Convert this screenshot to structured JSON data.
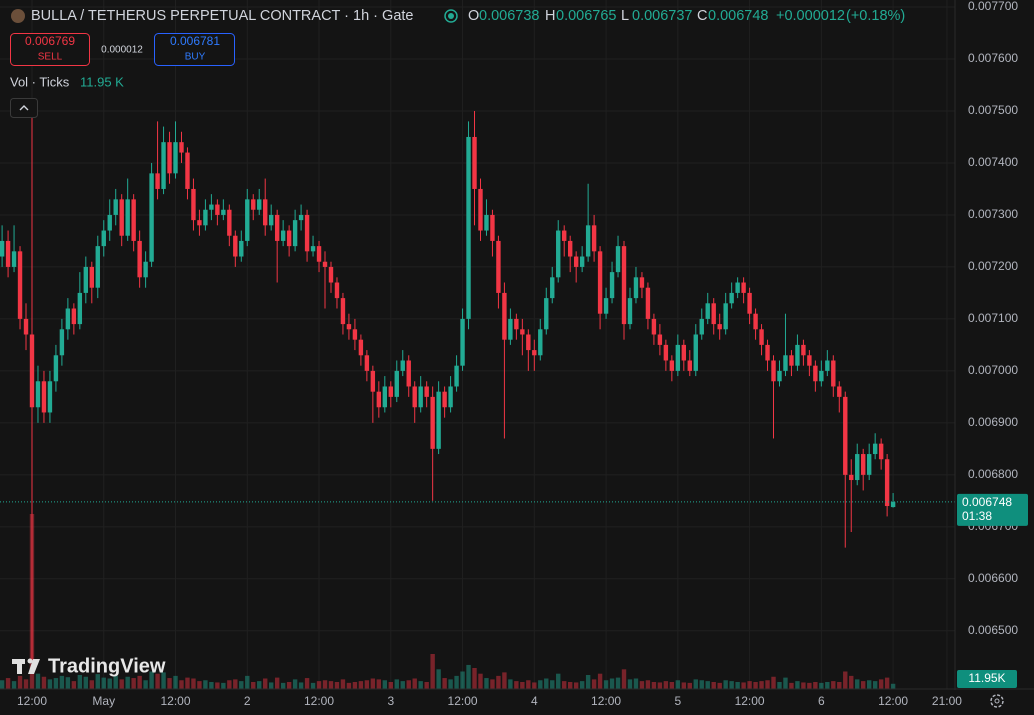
{
  "chart_data": {
    "type": "candlestick",
    "title": "BULLA / TETHERUS PERPETUAL CONTRACT · 1h · Gate",
    "ohlc_keys": [
      "O",
      "H",
      "L",
      "C"
    ],
    "change": {
      "value": 1.2e-05,
      "label": "+0.000012"
    },
    "change_pct": {
      "value": 0.18,
      "label": "(+0.18%)"
    },
    "sell": {
      "price": 0.006769,
      "label": "SELL"
    },
    "spread": 1.2e-05,
    "buy": {
      "price": 0.006781,
      "label": "BUY"
    },
    "volume_title": "Vol · Ticks",
    "volume_label": {
      "value": 11950,
      "label": "11.95 K"
    },
    "volume_axis_label": {
      "value": 11950,
      "label": "11.95K"
    },
    "countdown": "01:38",
    "watermark": "TradingView",
    "up_color": "#22ab94",
    "down_color": "#f23645",
    "grid": true,
    "ylim": [
      0.006388,
      0.0077135
    ],
    "yticks": [
      {
        "value": 0.0077,
        "label": "0.007700"
      },
      {
        "value": 0.0076,
        "label": "0.007600"
      },
      {
        "value": 0.0075,
        "label": "0.007500"
      },
      {
        "value": 0.0074,
        "label": "0.007400"
      },
      {
        "value": 0.0073,
        "label": "0.007300"
      },
      {
        "value": 0.0072,
        "label": "0.007200"
      },
      {
        "value": 0.0071,
        "label": "0.007100"
      },
      {
        "value": 0.007,
        "label": "0.007000"
      },
      {
        "value": 0.0069,
        "label": "0.006900"
      },
      {
        "value": 0.0068,
        "label": "0.006800"
      },
      {
        "value": 0.0067,
        "label": "0.006700"
      },
      {
        "value": 0.0066,
        "label": "0.006600"
      },
      {
        "value": 0.0065,
        "label": "0.006500"
      }
    ],
    "xlim": [
      -0.35,
      159.35
    ],
    "xticks": [
      {
        "value": 5,
        "label": "12:00"
      },
      {
        "value": 17,
        "label": "May"
      },
      {
        "value": 29,
        "label": "12:00"
      },
      {
        "value": 41,
        "label": "2"
      },
      {
        "value": 53,
        "label": "12:00"
      },
      {
        "value": 65,
        "label": "3"
      },
      {
        "value": 77,
        "label": "12:00"
      },
      {
        "value": 89,
        "label": "4"
      },
      {
        "value": 101,
        "label": "12:00"
      },
      {
        "value": 113,
        "label": "5"
      },
      {
        "value": 125,
        "label": "12:00"
      },
      {
        "value": 137,
        "label": "6"
      },
      {
        "value": 149,
        "label": "12:00"
      },
      {
        "value": 158,
        "label": "21:00"
      }
    ],
    "candles": [
      [
        0.00722,
        0.00728,
        0.0072,
        0.00725
      ],
      [
        0.00725,
        0.00727,
        0.00718,
        0.0072
      ],
      [
        0.0072,
        0.00728,
        0.00719,
        0.00723
      ],
      [
        0.00723,
        0.00724,
        0.00708,
        0.0071
      ],
      [
        0.0071,
        0.00713,
        0.00704,
        0.00707
      ],
      [
        0.00707,
        0.00752,
        0.00644,
        0.00693
      ],
      [
        0.00693,
        0.00701,
        0.0069,
        0.00698
      ],
      [
        0.00698,
        0.007,
        0.0069,
        0.00692
      ],
      [
        0.00692,
        0.007,
        0.0069,
        0.00698
      ],
      [
        0.00698,
        0.00705,
        0.00696,
        0.00703
      ],
      [
        0.00703,
        0.0071,
        0.00701,
        0.00708
      ],
      [
        0.00708,
        0.00714,
        0.00706,
        0.00712
      ],
      [
        0.00712,
        0.00713,
        0.00707,
        0.00709
      ],
      [
        0.00709,
        0.00719,
        0.00708,
        0.00715
      ],
      [
        0.00715,
        0.00722,
        0.00713,
        0.0072
      ],
      [
        0.0072,
        0.00721,
        0.00713,
        0.00716
      ],
      [
        0.00716,
        0.00726,
        0.00714,
        0.00724
      ],
      [
        0.00724,
        0.00729,
        0.00722,
        0.00727
      ],
      [
        0.00727,
        0.00733,
        0.00725,
        0.0073
      ],
      [
        0.0073,
        0.00735,
        0.00728,
        0.00733
      ],
      [
        0.00733,
        0.00734,
        0.00724,
        0.00726
      ],
      [
        0.00726,
        0.00737,
        0.00725,
        0.00733
      ],
      [
        0.00733,
        0.00734,
        0.00723,
        0.00725
      ],
      [
        0.00725,
        0.00727,
        0.00716,
        0.00718
      ],
      [
        0.00718,
        0.00723,
        0.00716,
        0.00721
      ],
      [
        0.00721,
        0.0074,
        0.0072,
        0.00738
      ],
      [
        0.00738,
        0.00748,
        0.00733,
        0.00735
      ],
      [
        0.00735,
        0.00747,
        0.00734,
        0.00744
      ],
      [
        0.00744,
        0.00746,
        0.00736,
        0.00738
      ],
      [
        0.00738,
        0.00748,
        0.00737,
        0.00744
      ],
      [
        0.00744,
        0.00746,
        0.0074,
        0.00742
      ],
      [
        0.00742,
        0.00743,
        0.00733,
        0.00735
      ],
      [
        0.00735,
        0.00737,
        0.00727,
        0.00729
      ],
      [
        0.00729,
        0.00731,
        0.00726,
        0.00728
      ],
      [
        0.00728,
        0.00733,
        0.00727,
        0.00731
      ],
      [
        0.00731,
        0.00734,
        0.00729,
        0.00732
      ],
      [
        0.00732,
        0.00733,
        0.00728,
        0.0073
      ],
      [
        0.0073,
        0.00733,
        0.00729,
        0.00731
      ],
      [
        0.00731,
        0.00732,
        0.00724,
        0.00726
      ],
      [
        0.00726,
        0.00727,
        0.0072,
        0.00722
      ],
      [
        0.00722,
        0.00727,
        0.00721,
        0.00725
      ],
      [
        0.00725,
        0.00735,
        0.00724,
        0.00733
      ],
      [
        0.00733,
        0.00734,
        0.00729,
        0.00731
      ],
      [
        0.00731,
        0.00735,
        0.0073,
        0.00733
      ],
      [
        0.00733,
        0.00737,
        0.00726,
        0.00728
      ],
      [
        0.00728,
        0.00732,
        0.00727,
        0.0073
      ],
      [
        0.0073,
        0.00731,
        0.00717,
        0.00725
      ],
      [
        0.00725,
        0.00729,
        0.00724,
        0.00727
      ],
      [
        0.00727,
        0.00728,
        0.00722,
        0.00724
      ],
      [
        0.00724,
        0.00731,
        0.00723,
        0.00729
      ],
      [
        0.00729,
        0.00732,
        0.00727,
        0.0073
      ],
      [
        0.0073,
        0.00731,
        0.00721,
        0.00723
      ],
      [
        0.00723,
        0.00726,
        0.00722,
        0.00724
      ],
      [
        0.00724,
        0.00725,
        0.00719,
        0.00721
      ],
      [
        0.00721,
        0.00723,
        0.00712,
        0.0072
      ],
      [
        0.0072,
        0.00721,
        0.00715,
        0.00717
      ],
      [
        0.00717,
        0.00718,
        0.00712,
        0.00714
      ],
      [
        0.00714,
        0.00715,
        0.00707,
        0.00709
      ],
      [
        0.00709,
        0.00711,
        0.00706,
        0.00708
      ],
      [
        0.00708,
        0.0071,
        0.00704,
        0.00706
      ],
      [
        0.00706,
        0.00707,
        0.00701,
        0.00703
      ],
      [
        0.00703,
        0.00704,
        0.00698,
        0.007
      ],
      [
        0.007,
        0.00701,
        0.0069,
        0.00696
      ],
      [
        0.00696,
        0.00698,
        0.00691,
        0.00693
      ],
      [
        0.00693,
        0.00699,
        0.00692,
        0.00697
      ],
      [
        0.00697,
        0.00698,
        0.00693,
        0.00695
      ],
      [
        0.00695,
        0.00702,
        0.00694,
        0.007
      ],
      [
        0.007,
        0.00704,
        0.00699,
        0.00702
      ],
      [
        0.00702,
        0.00703,
        0.00695,
        0.00697
      ],
      [
        0.00697,
        0.00698,
        0.0069,
        0.00693
      ],
      [
        0.00693,
        0.00699,
        0.00692,
        0.00697
      ],
      [
        0.00697,
        0.00698,
        0.00693,
        0.00695
      ],
      [
        0.00695,
        0.00697,
        0.00675,
        0.00685
      ],
      [
        0.00685,
        0.00698,
        0.00684,
        0.00696
      ],
      [
        0.00696,
        0.00697,
        0.00691,
        0.00693
      ],
      [
        0.00693,
        0.00699,
        0.00692,
        0.00697
      ],
      [
        0.00697,
        0.00703,
        0.00696,
        0.00701
      ],
      [
        0.00701,
        0.00712,
        0.007,
        0.0071
      ],
      [
        0.0071,
        0.00748,
        0.00708,
        0.00745
      ],
      [
        0.00745,
        0.0075,
        0.00728,
        0.00735
      ],
      [
        0.00735,
        0.00737,
        0.00725,
        0.00727
      ],
      [
        0.00727,
        0.00733,
        0.00726,
        0.0073
      ],
      [
        0.0073,
        0.00731,
        0.00722,
        0.00725
      ],
      [
        0.00725,
        0.00726,
        0.00712,
        0.00715
      ],
      [
        0.00715,
        0.00717,
        0.00687,
        0.00706
      ],
      [
        0.00706,
        0.00712,
        0.00705,
        0.0071
      ],
      [
        0.0071,
        0.00711,
        0.00706,
        0.00708
      ],
      [
        0.00708,
        0.0071,
        0.00703,
        0.00707
      ],
      [
        0.00707,
        0.00708,
        0.007,
        0.00704
      ],
      [
        0.00704,
        0.00706,
        0.007,
        0.00703
      ],
      [
        0.00703,
        0.0071,
        0.00702,
        0.00708
      ],
      [
        0.00708,
        0.00716,
        0.00707,
        0.00714
      ],
      [
        0.00714,
        0.0072,
        0.00713,
        0.00718
      ],
      [
        0.00718,
        0.00729,
        0.00717,
        0.00727
      ],
      [
        0.00727,
        0.00728,
        0.00722,
        0.00725
      ],
      [
        0.00725,
        0.00726,
        0.00719,
        0.00722
      ],
      [
        0.00722,
        0.00723,
        0.00717,
        0.0072
      ],
      [
        0.0072,
        0.00724,
        0.00719,
        0.00722
      ],
      [
        0.00722,
        0.00736,
        0.00721,
        0.00728
      ],
      [
        0.00728,
        0.0073,
        0.00721,
        0.00723
      ],
      [
        0.00723,
        0.00724,
        0.00708,
        0.00711
      ],
      [
        0.00711,
        0.00716,
        0.0071,
        0.00714
      ],
      [
        0.00714,
        0.00721,
        0.00713,
        0.00719
      ],
      [
        0.00719,
        0.00726,
        0.00718,
        0.00724
      ],
      [
        0.00724,
        0.00725,
        0.00706,
        0.00709
      ],
      [
        0.00709,
        0.00716,
        0.00708,
        0.00714
      ],
      [
        0.00714,
        0.0072,
        0.00713,
        0.00718
      ],
      [
        0.00718,
        0.00719,
        0.00714,
        0.00716
      ],
      [
        0.00716,
        0.00717,
        0.00708,
        0.0071
      ],
      [
        0.0071,
        0.00711,
        0.00705,
        0.00707
      ],
      [
        0.00707,
        0.00709,
        0.00703,
        0.00705
      ],
      [
        0.00705,
        0.00706,
        0.007,
        0.00702
      ],
      [
        0.00702,
        0.00703,
        0.00698,
        0.007
      ],
      [
        0.007,
        0.00707,
        0.00699,
        0.00705
      ],
      [
        0.00705,
        0.00706,
        0.007,
        0.00702
      ],
      [
        0.00702,
        0.00704,
        0.00699,
        0.007
      ],
      [
        0.007,
        0.00709,
        0.00699,
        0.00707
      ],
      [
        0.00707,
        0.00712,
        0.00706,
        0.0071
      ],
      [
        0.0071,
        0.00715,
        0.00709,
        0.00713
      ],
      [
        0.00713,
        0.00714,
        0.00707,
        0.00709
      ],
      [
        0.00709,
        0.00711,
        0.00706,
        0.00708
      ],
      [
        0.00708,
        0.00715,
        0.00707,
        0.00713
      ],
      [
        0.00713,
        0.00717,
        0.00712,
        0.00715
      ],
      [
        0.00715,
        0.00718,
        0.00714,
        0.00717
      ],
      [
        0.00717,
        0.00718,
        0.00713,
        0.00715
      ],
      [
        0.00715,
        0.00716,
        0.00709,
        0.00711
      ],
      [
        0.00711,
        0.00712,
        0.00706,
        0.00708
      ],
      [
        0.00708,
        0.00709,
        0.00703,
        0.00705
      ],
      [
        0.00705,
        0.00706,
        0.007,
        0.00702
      ],
      [
        0.00702,
        0.00703,
        0.00687,
        0.00698
      ],
      [
        0.00698,
        0.00702,
        0.00697,
        0.007
      ],
      [
        0.007,
        0.00711,
        0.00699,
        0.00703
      ],
      [
        0.00703,
        0.00704,
        0.00699,
        0.00701
      ],
      [
        0.00701,
        0.00707,
        0.007,
        0.00705
      ],
      [
        0.00705,
        0.00706,
        0.00701,
        0.00703
      ],
      [
        0.00703,
        0.00704,
        0.00699,
        0.00701
      ],
      [
        0.00701,
        0.00702,
        0.00696,
        0.00698
      ],
      [
        0.00698,
        0.00702,
        0.00697,
        0.007
      ],
      [
        0.007,
        0.00704,
        0.00699,
        0.00702
      ],
      [
        0.00702,
        0.00703,
        0.00695,
        0.00697
      ],
      [
        0.00697,
        0.00698,
        0.00692,
        0.00695
      ],
      [
        0.00695,
        0.00696,
        0.00666,
        0.0068
      ],
      [
        0.0068,
        0.00683,
        0.00669,
        0.00679
      ],
      [
        0.00679,
        0.00686,
        0.00678,
        0.00684
      ],
      [
        0.00684,
        0.00685,
        0.00677,
        0.0068
      ],
      [
        0.0068,
        0.00686,
        0.00679,
        0.00684
      ],
      [
        0.00684,
        0.00688,
        0.00683,
        0.00686
      ],
      [
        0.00686,
        0.00687,
        0.00681,
        0.00683
      ],
      [
        0.00683,
        0.00684,
        0.00672,
        0.00674
      ],
      [
        0.006738,
        0.006765,
        0.006737,
        0.006748
      ]
    ],
    "volumes": [
      20000,
      25000,
      18000,
      30000,
      22000,
      400000,
      35000,
      28000,
      22000,
      25000,
      30000,
      27000,
      18000,
      32000,
      28000,
      20000,
      34000,
      26000,
      24000,
      30000,
      22000,
      28000,
      25000,
      30000,
      20000,
      40000,
      35000,
      38000,
      25000,
      30000,
      20000,
      26000,
      24000,
      18000,
      20000,
      16000,
      15000,
      14000,
      20000,
      22000,
      18000,
      30000,
      16000,
      18000,
      24000,
      15000,
      26000,
      14000,
      16000,
      22000,
      15000,
      25000,
      14000,
      18000,
      20000,
      18000,
      16000,
      22000,
      14000,
      16000,
      18000,
      20000,
      24000,
      22000,
      20000,
      16000,
      22000,
      18000,
      20000,
      24000,
      18000,
      16000,
      80000,
      45000,
      25000,
      22000,
      30000,
      40000,
      55000,
      48000,
      35000,
      25000,
      22000,
      30000,
      38000,
      22000,
      18000,
      16000,
      20000,
      15000,
      20000,
      24000,
      20000,
      35000,
      18000,
      16000,
      15000,
      18000,
      32000,
      22000,
      35000,
      20000,
      24000,
      26000,
      45000,
      22000,
      24000,
      18000,
      20000,
      16000,
      15000,
      18000,
      16000,
      20000,
      15000,
      14000,
      22000,
      20000,
      18000,
      16000,
      14000,
      20000,
      18000,
      16000,
      15000,
      18000,
      16000,
      18000,
      20000,
      28000,
      16000,
      26000,
      14000,
      18000,
      15000,
      14000,
      16000,
      14000,
      16000,
      18000,
      16000,
      40000,
      30000,
      22000,
      18000,
      20000,
      18000,
      22000,
      26000,
      11950
    ]
  }
}
